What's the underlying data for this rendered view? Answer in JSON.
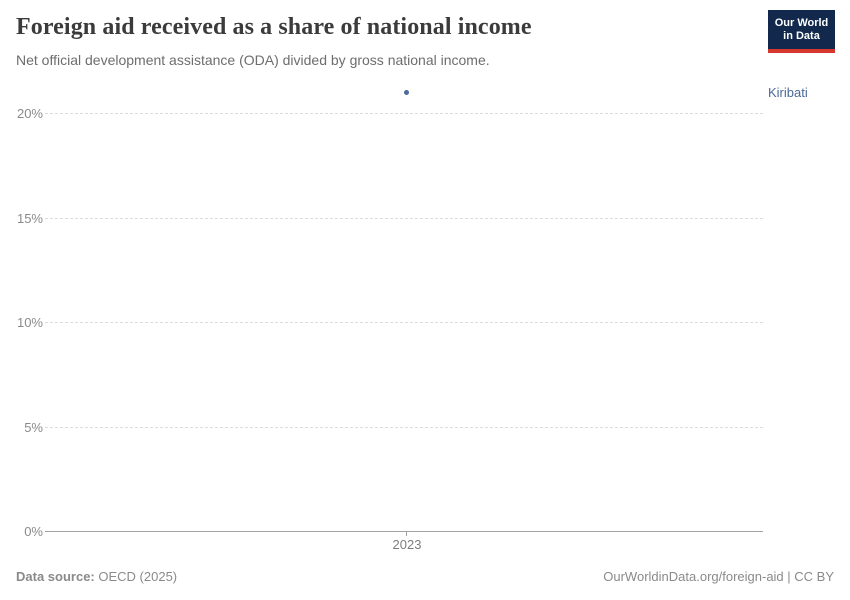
{
  "header": {
    "title": "Foreign aid received as a share of national income",
    "subtitle": "Net official development assistance (ODA) divided by gross national income."
  },
  "logo": {
    "line1": "Our World",
    "line2": "in Data",
    "bg_color": "#12294d",
    "accent_color": "#d7382d",
    "text_color": "#ffffff"
  },
  "chart_data": {
    "type": "scatter",
    "title": "Foreign aid received as a share of national income",
    "subtitle": "Net official development assistance (ODA) divided by gross national income.",
    "categories": [
      2023
    ],
    "x_tick_labels": [
      "2023"
    ],
    "y_tick_labels": [
      "0%",
      "5%",
      "10%",
      "15%",
      "20%"
    ],
    "ylim": [
      0,
      21.5
    ],
    "grid": true,
    "gridline_color": "#dddddd",
    "axis_color": "#a3a3a3",
    "legend_position": "right",
    "series": [
      {
        "name": "Kiribati",
        "color": "#4c6a9c",
        "points": [
          {
            "x": 2023,
            "y": 21
          }
        ]
      }
    ]
  },
  "footer": {
    "source_label": "Data source:",
    "source_value": "OECD (2025)",
    "credit": "OurWorldinData.org/foreign-aid | CC BY"
  }
}
